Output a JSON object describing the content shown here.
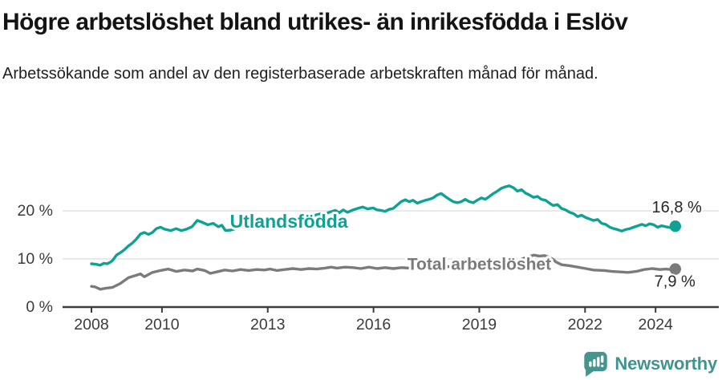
{
  "header": {
    "title": "Högre arbetslöshet bland utrikes- än inrikesfödda i Eslöv",
    "subtitle": "Arbetssökande som andel av den registerbaserade arbetskraften månad för månad."
  },
  "chart_data": {
    "type": "line",
    "title": "Högre arbetslöshet bland utrikes- än inrikesfödda i Eslöv",
    "xlabel": "",
    "ylabel": "",
    "unit": "%",
    "grid": "horizontal-only",
    "legend_position": "inline-on-lines",
    "ylim": [
      0,
      27
    ],
    "x_range": [
      2008.0,
      2024.56
    ],
    "yticks": [
      {
        "value": 0,
        "label": "0 %"
      },
      {
        "value": 10,
        "label": "10 %"
      },
      {
        "value": 20,
        "label": "20 %"
      }
    ],
    "xticks": [
      {
        "year": 2008,
        "label": "2008"
      },
      {
        "year": 2010,
        "label": "2010"
      },
      {
        "year": 2013,
        "label": "2013"
      },
      {
        "year": 2016,
        "label": "2016"
      },
      {
        "year": 2019,
        "label": "2019"
      },
      {
        "year": 2022,
        "label": "2022"
      },
      {
        "year": 2024,
        "label": "2024"
      }
    ],
    "axis_color": "#3c3c3c",
    "grid_color": "#dcdcdc",
    "series": [
      {
        "name": "Utlandsfödda",
        "color": "#0fa294",
        "end_label": "16,8 %",
        "end_value": 16.8,
        "label_anchor": {
          "year": 2013.6,
          "value": 17.8
        },
        "label_size": 23,
        "end_label_offset": [
          33,
          -23
        ],
        "points": [
          [
            2008.0,
            9.0
          ],
          [
            2008.12,
            8.9
          ],
          [
            2008.25,
            8.7
          ],
          [
            2008.35,
            9.1
          ],
          [
            2008.45,
            9.0
          ],
          [
            2008.55,
            9.4
          ],
          [
            2008.6,
            9.7
          ],
          [
            2008.71,
            10.8
          ],
          [
            2008.82,
            11.3
          ],
          [
            2008.93,
            11.9
          ],
          [
            2009.05,
            12.7
          ],
          [
            2009.16,
            13.3
          ],
          [
            2009.27,
            14.1
          ],
          [
            2009.39,
            15.2
          ],
          [
            2009.5,
            15.5
          ],
          [
            2009.62,
            15.1
          ],
          [
            2009.73,
            15.5
          ],
          [
            2009.84,
            16.3
          ],
          [
            2009.96,
            16.6
          ],
          [
            2010.07,
            16.2
          ],
          [
            2010.25,
            15.9
          ],
          [
            2010.4,
            16.3
          ],
          [
            2010.55,
            15.9
          ],
          [
            2010.7,
            16.2
          ],
          [
            2010.85,
            16.7
          ],
          [
            2011.0,
            18.0
          ],
          [
            2011.15,
            17.6
          ],
          [
            2011.3,
            17.1
          ],
          [
            2011.45,
            17.4
          ],
          [
            2011.6,
            16.7
          ],
          [
            2011.7,
            17.0
          ],
          [
            2011.8,
            15.9
          ],
          [
            2011.95,
            16.0
          ],
          [
            2012.1,
            16.3
          ],
          [
            2012.25,
            16.8
          ],
          [
            2012.4,
            16.5
          ],
          [
            2012.55,
            16.9
          ],
          [
            2012.7,
            17.1
          ],
          [
            2012.85,
            17.3
          ],
          [
            2013.0,
            17.0
          ],
          [
            2013.15,
            17.4
          ],
          [
            2013.3,
            17.7
          ],
          [
            2013.45,
            17.9
          ],
          [
            2013.6,
            18.1
          ],
          [
            2013.75,
            18.3
          ],
          [
            2013.9,
            18.2
          ],
          [
            2014.05,
            18.5
          ],
          [
            2014.2,
            18.8
          ],
          [
            2014.35,
            19.1
          ],
          [
            2014.5,
            19.4
          ],
          [
            2014.64,
            19.4
          ],
          [
            2014.78,
            19.8
          ],
          [
            2014.92,
            20.1
          ],
          [
            2015.03,
            19.6
          ],
          [
            2015.14,
            20.2
          ],
          [
            2015.26,
            19.7
          ],
          [
            2015.42,
            20.2
          ],
          [
            2015.55,
            20.5
          ],
          [
            2015.69,
            20.8
          ],
          [
            2015.83,
            20.4
          ],
          [
            2015.99,
            20.6
          ],
          [
            2016.1,
            20.2
          ],
          [
            2016.21,
            20.1
          ],
          [
            2016.33,
            19.9
          ],
          [
            2016.44,
            20.3
          ],
          [
            2016.56,
            20.5
          ],
          [
            2016.78,
            21.9
          ],
          [
            2016.9,
            22.3
          ],
          [
            2017.01,
            21.9
          ],
          [
            2017.12,
            22.2
          ],
          [
            2017.24,
            21.6
          ],
          [
            2017.35,
            21.9
          ],
          [
            2017.47,
            22.2
          ],
          [
            2017.58,
            22.4
          ],
          [
            2017.69,
            22.7
          ],
          [
            2017.81,
            23.3
          ],
          [
            2017.92,
            23.6
          ],
          [
            2018.03,
            23.0
          ],
          [
            2018.15,
            22.4
          ],
          [
            2018.26,
            21.9
          ],
          [
            2018.38,
            21.7
          ],
          [
            2018.49,
            21.9
          ],
          [
            2018.6,
            22.4
          ],
          [
            2018.72,
            21.9
          ],
          [
            2018.83,
            21.7
          ],
          [
            2018.94,
            22.2
          ],
          [
            2019.06,
            22.7
          ],
          [
            2019.17,
            22.4
          ],
          [
            2019.29,
            23.0
          ],
          [
            2019.4,
            23.6
          ],
          [
            2019.51,
            24.1
          ],
          [
            2019.63,
            24.7
          ],
          [
            2019.74,
            25.0
          ],
          [
            2019.85,
            25.2
          ],
          [
            2019.97,
            24.8
          ],
          [
            2020.08,
            24.1
          ],
          [
            2020.2,
            24.4
          ],
          [
            2020.31,
            23.7
          ],
          [
            2020.42,
            23.3
          ],
          [
            2020.54,
            22.8
          ],
          [
            2020.65,
            23.0
          ],
          [
            2020.76,
            22.4
          ],
          [
            2020.88,
            22.2
          ],
          [
            2020.99,
            21.6
          ],
          [
            2021.1,
            21.1
          ],
          [
            2021.22,
            21.3
          ],
          [
            2021.33,
            20.5
          ],
          [
            2021.45,
            20.2
          ],
          [
            2021.56,
            19.7
          ],
          [
            2021.68,
            19.4
          ],
          [
            2021.79,
            18.8
          ],
          [
            2021.9,
            19.1
          ],
          [
            2022.02,
            18.6
          ],
          [
            2022.13,
            18.3
          ],
          [
            2022.24,
            18.0
          ],
          [
            2022.36,
            18.2
          ],
          [
            2022.47,
            17.4
          ],
          [
            2022.58,
            17.2
          ],
          [
            2022.7,
            16.6
          ],
          [
            2022.81,
            16.3
          ],
          [
            2022.92,
            16.1
          ],
          [
            2023.04,
            15.8
          ],
          [
            2023.15,
            16.1
          ],
          [
            2023.27,
            16.3
          ],
          [
            2023.38,
            16.6
          ],
          [
            2023.5,
            16.9
          ],
          [
            2023.61,
            17.2
          ],
          [
            2023.72,
            16.9
          ],
          [
            2023.83,
            17.3
          ],
          [
            2023.95,
            17.1
          ],
          [
            2024.06,
            16.6
          ],
          [
            2024.17,
            16.9
          ],
          [
            2024.29,
            16.7
          ],
          [
            2024.42,
            16.5
          ],
          [
            2024.56,
            16.8
          ]
        ]
      },
      {
        "name": "Total arbetslöshet",
        "color": "#7b7b7b",
        "end_label": "7,9 %",
        "end_value": 7.9,
        "label_anchor": {
          "year": 2019.0,
          "value": 8.85
        },
        "label_size": 21,
        "end_label_offset": [
          25,
          16
        ],
        "points": [
          [
            2008.0,
            4.3
          ],
          [
            2008.1,
            4.2
          ],
          [
            2008.25,
            3.7
          ],
          [
            2008.4,
            3.9
          ],
          [
            2008.6,
            4.1
          ],
          [
            2008.82,
            4.9
          ],
          [
            2009.05,
            6.1
          ],
          [
            2009.27,
            6.6
          ],
          [
            2009.39,
            6.9
          ],
          [
            2009.5,
            6.3
          ],
          [
            2009.73,
            7.2
          ],
          [
            2009.96,
            7.6
          ],
          [
            2010.18,
            7.9
          ],
          [
            2010.41,
            7.4
          ],
          [
            2010.64,
            7.7
          ],
          [
            2010.87,
            7.5
          ],
          [
            2011.0,
            7.9
          ],
          [
            2011.21,
            7.6
          ],
          [
            2011.37,
            7.0
          ],
          [
            2011.55,
            7.3
          ],
          [
            2011.78,
            7.7
          ],
          [
            2012.0,
            7.5
          ],
          [
            2012.23,
            7.8
          ],
          [
            2012.46,
            7.6
          ],
          [
            2012.69,
            7.8
          ],
          [
            2012.91,
            7.7
          ],
          [
            2013.07,
            7.9
          ],
          [
            2013.26,
            7.6
          ],
          [
            2013.48,
            7.8
          ],
          [
            2013.71,
            8.0
          ],
          [
            2013.94,
            7.8
          ],
          [
            2014.17,
            8.0
          ],
          [
            2014.39,
            7.9
          ],
          [
            2014.62,
            8.1
          ],
          [
            2014.8,
            8.3
          ],
          [
            2014.96,
            8.1
          ],
          [
            2015.19,
            8.3
          ],
          [
            2015.42,
            8.2
          ],
          [
            2015.64,
            8.0
          ],
          [
            2015.87,
            8.3
          ],
          [
            2016.1,
            8.0
          ],
          [
            2016.33,
            8.2
          ],
          [
            2016.56,
            8.0
          ],
          [
            2016.8,
            8.2
          ],
          [
            2017.0,
            8.1
          ],
          [
            2017.25,
            8.3
          ],
          [
            2017.5,
            8.2
          ],
          [
            2017.75,
            8.4
          ],
          [
            2018.0,
            8.3
          ],
          [
            2018.25,
            8.5
          ],
          [
            2018.5,
            8.4
          ],
          [
            2018.75,
            8.5
          ],
          [
            2019.0,
            8.6
          ],
          [
            2019.25,
            8.5
          ],
          [
            2019.5,
            8.7
          ],
          [
            2019.75,
            8.9
          ],
          [
            2019.95,
            9.2
          ],
          [
            2020.15,
            9.8
          ],
          [
            2020.35,
            10.4
          ],
          [
            2020.55,
            10.8
          ],
          [
            2020.7,
            10.6
          ],
          [
            2020.85,
            10.7
          ],
          [
            2021.0,
            10.3
          ],
          [
            2021.1,
            9.9
          ],
          [
            2021.17,
            9.4
          ],
          [
            2021.33,
            8.8
          ],
          [
            2021.56,
            8.6
          ],
          [
            2021.79,
            8.3
          ],
          [
            2022.02,
            8.0
          ],
          [
            2022.24,
            7.7
          ],
          [
            2022.54,
            7.6
          ],
          [
            2022.77,
            7.4
          ],
          [
            2023.0,
            7.3
          ],
          [
            2023.22,
            7.2
          ],
          [
            2023.45,
            7.4
          ],
          [
            2023.68,
            7.8
          ],
          [
            2023.9,
            8.0
          ],
          [
            2024.13,
            7.8
          ],
          [
            2024.29,
            7.9
          ],
          [
            2024.42,
            7.8
          ],
          [
            2024.56,
            7.9
          ]
        ]
      }
    ]
  },
  "footer": {
    "brand": "Newsworthy",
    "brand_color": "#3f948f",
    "icon": "newsworthy-speech-bubble-bar-chart-icon",
    "icon_color": "#45948e"
  }
}
